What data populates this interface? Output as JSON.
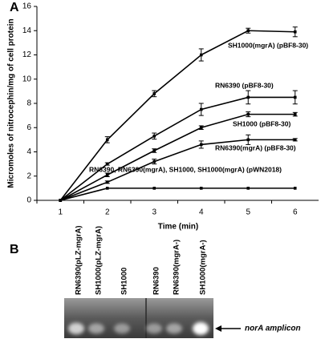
{
  "chart_data": {
    "type": "line",
    "panel_label": "A",
    "xlabel": "Time (min)",
    "ylabel": "Micromoles of nitrocephin/mg of cell protein",
    "categories": [
      "1",
      "2",
      "3",
      "4",
      "5",
      "6"
    ],
    "ylim": [
      0,
      16
    ],
    "yticks": [
      0,
      2,
      4,
      6,
      8,
      10,
      12,
      14,
      16
    ],
    "series": [
      {
        "name": "SH1000(mgrA) (pBF8-30)",
        "color": "#000000",
        "values": [
          0,
          5.0,
          8.8,
          12.0,
          14.0,
          13.9
        ],
        "errors": [
          0,
          0.25,
          0.25,
          0.5,
          0.2,
          0.4
        ]
      },
      {
        "name": "RN6390 (pBF8-30)",
        "color": "#000000",
        "values": [
          0,
          3.0,
          5.3,
          7.5,
          8.5,
          8.5
        ],
        "errors": [
          0,
          0.1,
          0.25,
          0.5,
          0.55,
          0.55
        ]
      },
      {
        "name": "SH1000 (pBF8-30)",
        "color": "#000000",
        "values": [
          0,
          2.1,
          4.1,
          6.0,
          7.1,
          7.1
        ],
        "errors": [
          0,
          0.15,
          0.15,
          0.15,
          0.2,
          0.15
        ]
      },
      {
        "name": "RN6390(mgrA) (pBF8-30)",
        "color": "#000000",
        "values": [
          0,
          1.5,
          3.2,
          4.6,
          5.0,
          5.0
        ],
        "errors": [
          0,
          0.1,
          0.2,
          0.3,
          0.4,
          0.1
        ]
      },
      {
        "name": "RN6390, RN6390(mgrA), SH1000, SH1000(mgrA) (pWN2018)",
        "color": "#000000",
        "values": [
          0,
          1.0,
          1.0,
          1.0,
          1.0,
          1.0
        ],
        "errors": [
          0,
          0,
          0,
          0,
          0,
          0
        ]
      }
    ]
  },
  "gel": {
    "panel_label": "B",
    "lanes": [
      "RN6390(pLZ-mgrA)",
      "SH1000(pLZ-mgrA)",
      "SH1000",
      "RN6390",
      "RN6390(mgrA-)",
      "SH1000(mgrA-)"
    ],
    "band_label": "norA amplicon"
  }
}
